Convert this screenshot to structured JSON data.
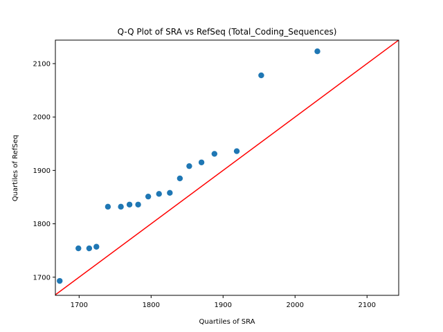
{
  "chart_data": {
    "type": "scatter",
    "title": "Q-Q Plot of SRA vs RefSeq (Total_Coding_Sequences)",
    "xlabel": "Quartiles of SRA",
    "ylabel": "Quartiles of RefSeq",
    "xlim": [
      1667,
      2144
    ],
    "ylim": [
      1666,
      2144
    ],
    "xticks": [
      1700,
      1800,
      1900,
      2000,
      2100
    ],
    "yticks": [
      1700,
      1800,
      1900,
      2000,
      2100
    ],
    "grid": false,
    "series": [
      {
        "marker_color": "#1f77b4",
        "points": [
          {
            "x": 1673,
            "y": 1693
          },
          {
            "x": 1699,
            "y": 1754
          },
          {
            "x": 1714,
            "y": 1754
          },
          {
            "x": 1724,
            "y": 1757
          },
          {
            "x": 1740,
            "y": 1832
          },
          {
            "x": 1758,
            "y": 1832
          },
          {
            "x": 1770,
            "y": 1836
          },
          {
            "x": 1782,
            "y": 1836
          },
          {
            "x": 1796,
            "y": 1851
          },
          {
            "x": 1811,
            "y": 1856
          },
          {
            "x": 1826,
            "y": 1858
          },
          {
            "x": 1840,
            "y": 1885
          },
          {
            "x": 1853,
            "y": 1908
          },
          {
            "x": 1870,
            "y": 1915
          },
          {
            "x": 1888,
            "y": 1931
          },
          {
            "x": 1919,
            "y": 1936
          },
          {
            "x": 1953,
            "y": 2078
          },
          {
            "x": 2031,
            "y": 2123
          }
        ]
      }
    ],
    "reference_line": {
      "type": "y=x",
      "color": "#ff0000"
    },
    "colors": {
      "background": "#ffffff",
      "axes": "#000000"
    }
  }
}
